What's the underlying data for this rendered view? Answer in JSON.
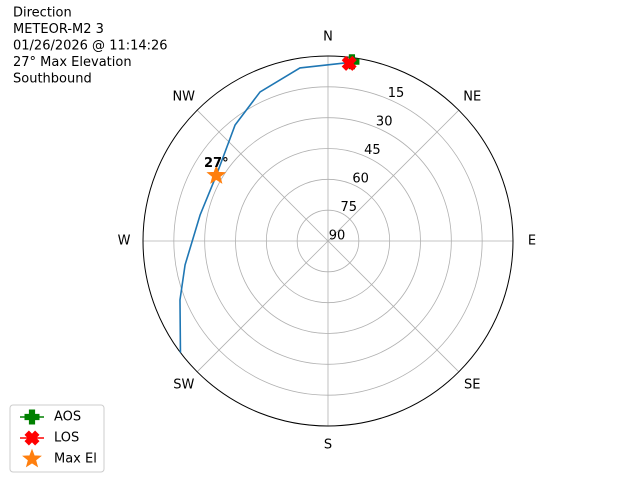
{
  "chart_data": {
    "type": "polar",
    "title_lines": [
      "Direction",
      "METEOR-M2 3",
      "01/26/2026 @ 11:14:26",
      "27° Max Elevation",
      "Southbound"
    ],
    "xticks": [
      {
        "value": 0,
        "label": "N"
      },
      {
        "value": 45,
        "label": "NE"
      },
      {
        "value": 90,
        "label": "E"
      },
      {
        "value": 135,
        "label": "SE"
      },
      {
        "value": 180,
        "label": "S"
      },
      {
        "value": 225,
        "label": "SW"
      },
      {
        "value": 270,
        "label": "W"
      },
      {
        "value": 315,
        "label": "NW"
      }
    ],
    "ylim": [
      90,
      0
    ],
    "yticks": [
      15,
      30,
      45,
      60,
      75,
      90
    ],
    "grid": true,
    "series": [
      {
        "color": "#1f77b4",
        "marker": "none",
        "x": [
          6.9,
          350.8,
          335.5,
          321.3,
          300.4,
          281.5,
          260.5,
          248.3,
          232.9
        ],
        "values": [
          2.5,
          4.7,
          10.3,
          17.7,
          27,
          26.5,
          19.5,
          12.5,
          0
        ]
      },
      {
        "name": "AOS",
        "color": "#008000",
        "marker": "plus",
        "legend_line": true,
        "x": [
          7.6
        ],
        "values": [
          2
        ]
      },
      {
        "name": "LOS",
        "color": "#ff0000",
        "marker": "x",
        "legend_line": true,
        "x": [
          6.8
        ],
        "values": [
          3
        ]
      },
      {
        "name": "Max El",
        "color": "#ff7f0e",
        "marker": "star",
        "legend_line": false,
        "x": [
          300.4
        ],
        "values": [
          27
        ],
        "value_labels": [
          "27°"
        ]
      }
    ],
    "legend": "lower left"
  }
}
